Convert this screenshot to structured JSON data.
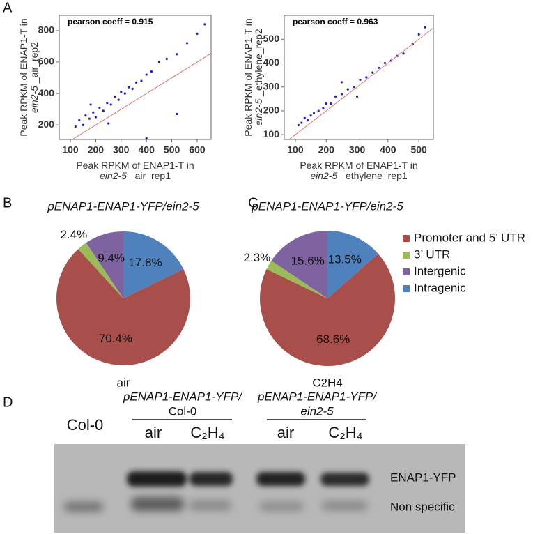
{
  "panel_labels": [
    "A",
    "B",
    "C",
    "D"
  ],
  "chart_data": [
    {
      "type": "scatter",
      "annotation": "pearson coeff = 0.915",
      "xlabel": {
        "text": "Peak RPKM of ENAP1-T in",
        "italic": "ein2-5",
        "rest": " _air_rep1"
      },
      "ylabel": {
        "text": "Peak RPKM of ENAP1-T in",
        "italic": "ein2-5",
        "rest": " _air_rep2"
      },
      "x": [
        120,
        135,
        150,
        160,
        175,
        190,
        200,
        215,
        230,
        245,
        260,
        275,
        290,
        300,
        315,
        330,
        345,
        360,
        380,
        400,
        420,
        450,
        480,
        520,
        560,
        600,
        630,
        180,
        250,
        520,
        400
      ],
      "y": [
        190,
        230,
        200,
        260,
        240,
        280,
        250,
        310,
        290,
        340,
        330,
        380,
        360,
        410,
        400,
        440,
        430,
        470,
        480,
        520,
        540,
        600,
        620,
        650,
        720,
        780,
        840,
        330,
        210,
        270,
        115
      ],
      "color": "#1a1ad8",
      "xlim": [
        56,
        655
      ],
      "ylim": [
        108,
        897
      ],
      "xticks": [
        100,
        200,
        300,
        400,
        500,
        600
      ],
      "yticks": [
        200,
        400,
        600,
        800
      ],
      "diagonal_color": "#e07070"
    },
    {
      "type": "scatter",
      "annotation": "pearson coeff = 0.963",
      "xlabel": {
        "text": "Peak RPKM of ENAP1-T in",
        "italic": "ein2-5",
        "rest": " _ethylene_rep1"
      },
      "ylabel": {
        "text": "Peak RPKM of ENAP1-T in",
        "italic": "ein2-5",
        "rest": " _ethylene_rep2"
      },
      "x": [
        110,
        120,
        130,
        140,
        150,
        160,
        175,
        190,
        200,
        215,
        230,
        250,
        270,
        290,
        310,
        330,
        350,
        370,
        390,
        410,
        430,
        450,
        480,
        500,
        520,
        300,
        250
      ],
      "y": [
        140,
        150,
        170,
        160,
        180,
        190,
        200,
        210,
        230,
        230,
        260,
        270,
        290,
        300,
        330,
        340,
        360,
        380,
        400,
        410,
        430,
        440,
        480,
        520,
        550,
        260,
        320
      ],
      "color": "#1a1ad8",
      "xlim": [
        64,
        547
      ],
      "ylim": [
        80,
        600
      ],
      "xticks": [
        100,
        200,
        300,
        400,
        500
      ],
      "yticks": [
        100,
        200,
        300,
        400,
        500
      ],
      "diagonal_color": "#e07070"
    },
    {
      "type": "pie",
      "title": "pENAP1-ENAP1-YFP/ein2-5",
      "xlabel": "air",
      "values": [
        70.4,
        2.4,
        9.4,
        17.8
      ],
      "value_labels": [
        "70.4%",
        "2.4%",
        "9.4%",
        "17.8%"
      ]
    },
    {
      "type": "pie",
      "title": "pENAP1-ENAP1-YFP/ein2-5",
      "xlabel": "C2H4",
      "values": [
        68.6,
        2.3,
        15.6,
        13.5
      ],
      "value_labels": [
        "68.6%",
        "2.3%",
        "15.6%",
        "13.5%"
      ]
    }
  ],
  "pie_legend": [
    {
      "name": "Promoter and 5’ UTR",
      "color": "#a94f4b"
    },
    {
      "name": "3’ UTR",
      "color": "#9bbb59"
    },
    {
      "name": "Intergenic",
      "color": "#7e63a0"
    },
    {
      "name": "Intragenic",
      "color": "#4f81bd"
    }
  ],
  "blot": {
    "control": "Col-0",
    "groups": [
      {
        "line1": "pENAP1-ENAP1-YFP/",
        "line2": "Col-0",
        "lanes": [
          "air",
          "C₂H₄"
        ]
      },
      {
        "line1": "pENAP1-ENAP1-YFP/",
        "line2": "ein2-5",
        "lanes": [
          "air",
          "C₂H₄"
        ]
      }
    ],
    "bands": [
      "ENAP1-YFP",
      "Non specific"
    ]
  }
}
